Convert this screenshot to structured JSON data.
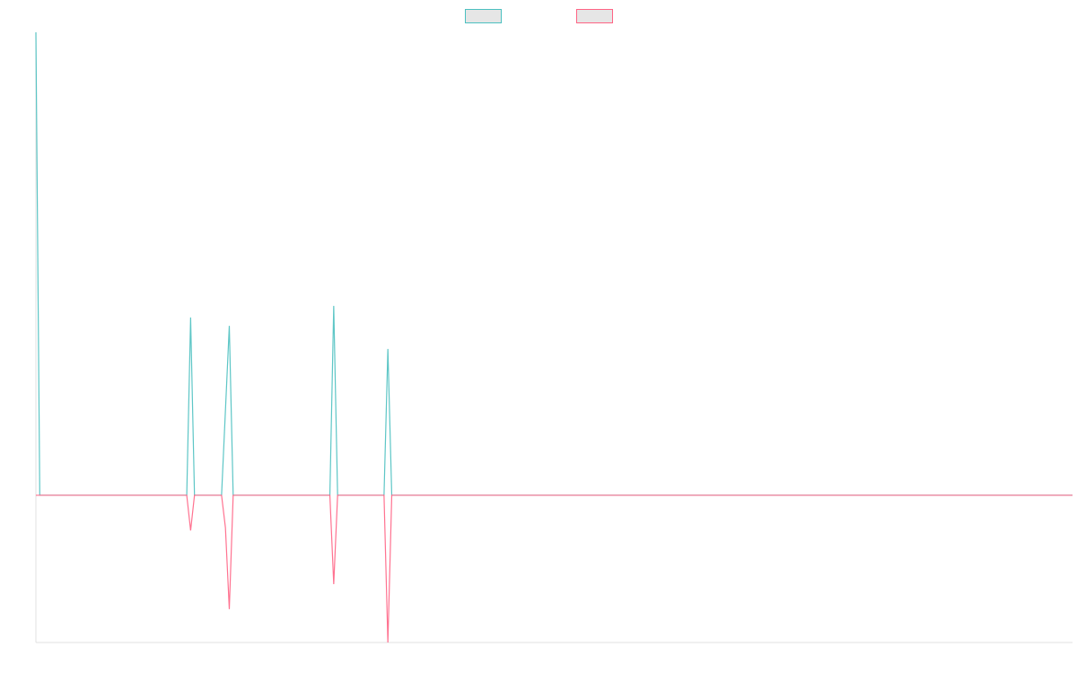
{
  "chart_data": {
    "type": "line",
    "x": [
      0,
      1,
      39,
      40,
      41,
      48,
      49,
      50,
      51,
      76,
      77,
      78,
      90,
      91,
      92,
      268
    ],
    "xlim": [
      0,
      268
    ],
    "ylim": [
      -31.8,
      100
    ],
    "legend": "top",
    "series": [
      {
        "color": "#4bc0c0",
        "values": [
          100,
          0,
          0,
          38.4,
          0,
          0,
          18.3,
          36.6,
          0,
          0,
          40.9,
          0,
          0,
          31.6,
          0,
          0
        ]
      },
      {
        "color": "#ff6384",
        "values": [
          0,
          0,
          0,
          -7.6,
          0,
          0,
          -7,
          -24.6,
          0,
          0,
          -19.2,
          0,
          0,
          -31.8,
          0,
          0
        ]
      }
    ]
  }
}
